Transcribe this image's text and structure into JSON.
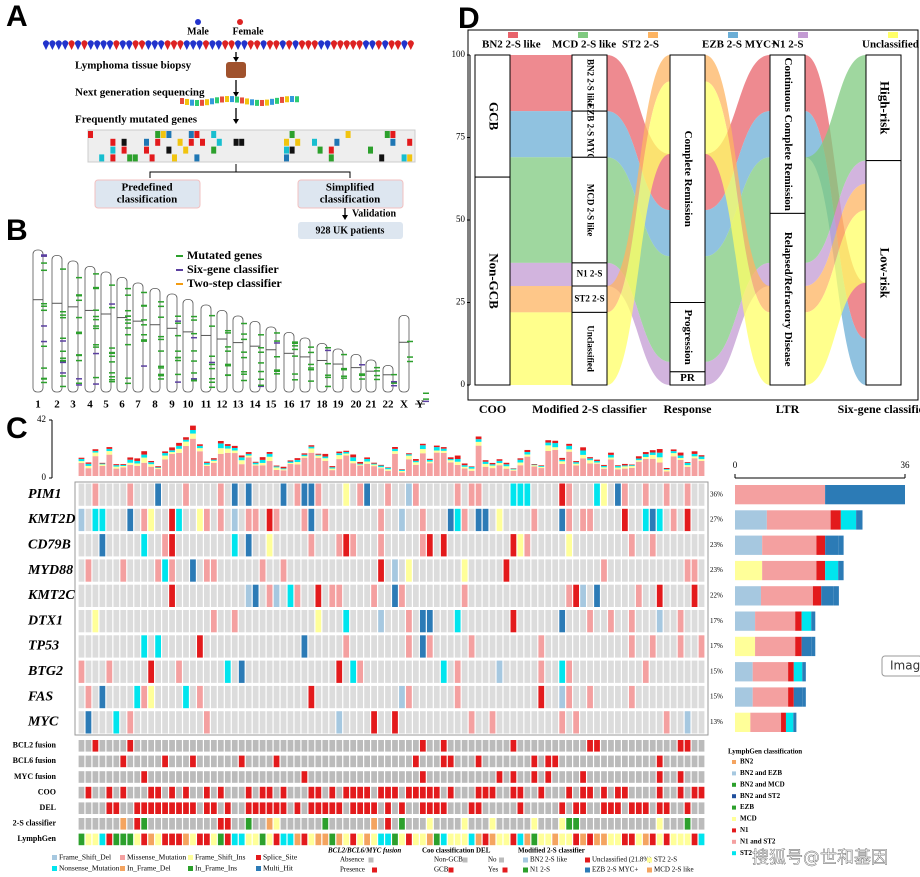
{
  "panel_a": {
    "label": "A",
    "male": "Male",
    "female": "Female",
    "steps": [
      "Lymphoma tissue biopsy",
      "Next generation sequencing",
      "Frequently mutated genes"
    ],
    "boxes": [
      [
        "Predefined",
        "classification"
      ],
      [
        "Simplified",
        "classification"
      ]
    ],
    "validation": "Validation",
    "cohort": "928 UK patients"
  },
  "panel_b": {
    "label": "B",
    "legend": [
      {
        "name": "Mutated genes",
        "color": "#2ca02c"
      },
      {
        "name": "Six-gene classifier",
        "color": "#5b3fa0"
      },
      {
        "name": "Two-step classifier",
        "color": "#f39c12"
      }
    ],
    "chromosomes": [
      "1",
      "2",
      "3",
      "4",
      "5",
      "6",
      "7",
      "8",
      "9",
      "10",
      "11",
      "12",
      "13",
      "14",
      "15",
      "16",
      "17",
      "18",
      "19",
      "20",
      "21",
      "22",
      "X",
      "Y"
    ]
  },
  "panel_c": {
    "label": "C",
    "top_bar": {
      "ylim": [
        0,
        42
      ],
      "yticks": [
        0,
        42
      ]
    },
    "genes": [
      {
        "name": "PIM1",
        "pct": 36,
        "pct_label": "36%"
      },
      {
        "name": "KMT2D",
        "pct": 27,
        "pct_label": "27%"
      },
      {
        "name": "CD79B",
        "pct": 23,
        "pct_label": "23%"
      },
      {
        "name": "MYD88",
        "pct": 23,
        "pct_label": "23%"
      },
      {
        "name": "KMT2C",
        "pct": 22,
        "pct_label": "22%"
      },
      {
        "name": "DTX1",
        "pct": 17,
        "pct_label": "17%"
      },
      {
        "name": "TP53",
        "pct": 17,
        "pct_label": "17%"
      },
      {
        "name": "BTG2",
        "pct": 15,
        "pct_label": "15%"
      },
      {
        "name": "FAS",
        "pct": 15,
        "pct_label": "15%"
      },
      {
        "name": "MYC",
        "pct": 13,
        "pct_label": "13%"
      }
    ],
    "right_bar": {
      "xlim": [
        0,
        36
      ],
      "xticks": [
        0,
        36
      ]
    },
    "annotations": [
      "BCL2 fusion",
      "BCL6 fusion",
      "MYC fusion",
      "COO",
      "DEL",
      "2-S classifier",
      "LymphGen"
    ],
    "mutation_legend": [
      {
        "name": "Frame_Shift_Del",
        "color": "#a6c8e0"
      },
      {
        "name": "Nonsense_Mutation",
        "color": "#00e5ee"
      },
      {
        "name": "Missense_Mutation",
        "color": "#f4a0a0"
      },
      {
        "name": "In_Frame_Del",
        "color": "#f4a460"
      },
      {
        "name": "Frame_Shift_Ins",
        "color": "#ffff99"
      },
      {
        "name": "In_Frame_Ins",
        "color": "#2ca02c"
      },
      {
        "name": "Splice_Site",
        "color": "#e31a1c"
      },
      {
        "name": "Multi_Hit",
        "color": "#2c7bb6"
      }
    ],
    "groups": [
      {
        "title": "BCL2/BCL6/MYC fusion",
        "items": [
          {
            "name": "Absence",
            "color": "#bbbbbb"
          },
          {
            "name": "Presence",
            "color": "#e31a1c"
          }
        ]
      },
      {
        "title": "Coo classification",
        "items": [
          {
            "name": "Non-GCB",
            "color": "#bbbbbb"
          },
          {
            "name": "GCB",
            "color": "#e31a1c"
          }
        ]
      },
      {
        "title": "DEL",
        "items": [
          {
            "name": "No",
            "color": "#bbbbbb"
          },
          {
            "name": "Yes",
            "color": "#e31a1c"
          }
        ]
      },
      {
        "title": "Modified 2-S classifier",
        "items": [
          {
            "name": "BN2 2-S like",
            "color": "#a6c8e0"
          },
          {
            "name": "N1 2-S",
            "color": "#2ca02c"
          },
          {
            "name": "Unclassified (21.8%)",
            "color": "#e31a1c"
          },
          {
            "name": "EZB 2-S MYC+",
            "color": "#2c7bb6"
          },
          {
            "name": "ST2 2-S",
            "color": "#ffff99"
          },
          {
            "name": "MCD 2-S like",
            "color": "#f4a460"
          }
        ]
      }
    ],
    "lymphgen_legend": {
      "title": "LymphGen classification",
      "items": [
        {
          "name": "BN2",
          "color": "#f4a460"
        },
        {
          "name": "BN2 and EZB",
          "color": "#a6c8e0"
        },
        {
          "name": "BN2 and MCD",
          "color": "#2ca02c"
        },
        {
          "name": "BN2 and ST2",
          "color": "#1f4e9c"
        },
        {
          "name": "EZB",
          "color": "#2ca02c"
        },
        {
          "name": "MCD",
          "color": "#ffff99"
        },
        {
          "name": "N1",
          "color": "#e31a1c"
        },
        {
          "name": "N1 and ST2",
          "color": "#f4a0a0"
        },
        {
          "name": "ST2",
          "color": "#00e5ee"
        }
      ]
    }
  },
  "panel_d": {
    "label": "D",
    "legend": [
      {
        "name": "BN2 2-S like",
        "color": "#e8636b"
      },
      {
        "name": "MCD 2-S like",
        "color": "#7fc97f"
      },
      {
        "name": "ST2 2-S",
        "color": "#fdb462"
      },
      {
        "name": "EZB 2-S MYC+",
        "color": "#6baed6"
      },
      {
        "name": "N1 2-S",
        "color": "#c39bd3"
      },
      {
        "name": "Unclassified",
        "color": "#ffff66"
      }
    ],
    "ylim": [
      0,
      100
    ],
    "yticks": [
      0,
      25,
      50,
      75,
      100
    ],
    "columns": [
      {
        "name": "COO",
        "nodes": [
          {
            "name": "GCB",
            "value": 37
          },
          {
            "name": "Non-GCB",
            "value": 63
          }
        ]
      },
      {
        "name": "Modified 2-S classifier",
        "nodes": [
          {
            "name": "BN2 2-S like",
            "value": 17
          },
          {
            "name": "EZB 2-S MYC+",
            "value": 14
          },
          {
            "name": "MCD 2-S like",
            "value": 32
          },
          {
            "name": "N1 2-S",
            "value": 7
          },
          {
            "name": "ST2 2-S",
            "value": 8
          },
          {
            "name": "Unclassified",
            "value": 22
          }
        ]
      },
      {
        "name": "Response",
        "nodes": [
          {
            "name": "Complete Remission",
            "value": 75
          },
          {
            "name": "Progression",
            "value": 21
          },
          {
            "name": "PR",
            "value": 4
          }
        ]
      },
      {
        "name": "LTR",
        "nodes": [
          {
            "name": "Continuous Complete Remission",
            "value": 48
          },
          {
            "name": "Relapsed/Refractory Disease",
            "value": 52
          }
        ]
      },
      {
        "name": "Six-gene classifier",
        "nodes": [
          {
            "name": "High-risk",
            "value": 32
          },
          {
            "name": "Low-risk",
            "value": 68
          }
        ]
      }
    ]
  },
  "watermark": "搜狐号@世和基因",
  "tooltip": "Image"
}
